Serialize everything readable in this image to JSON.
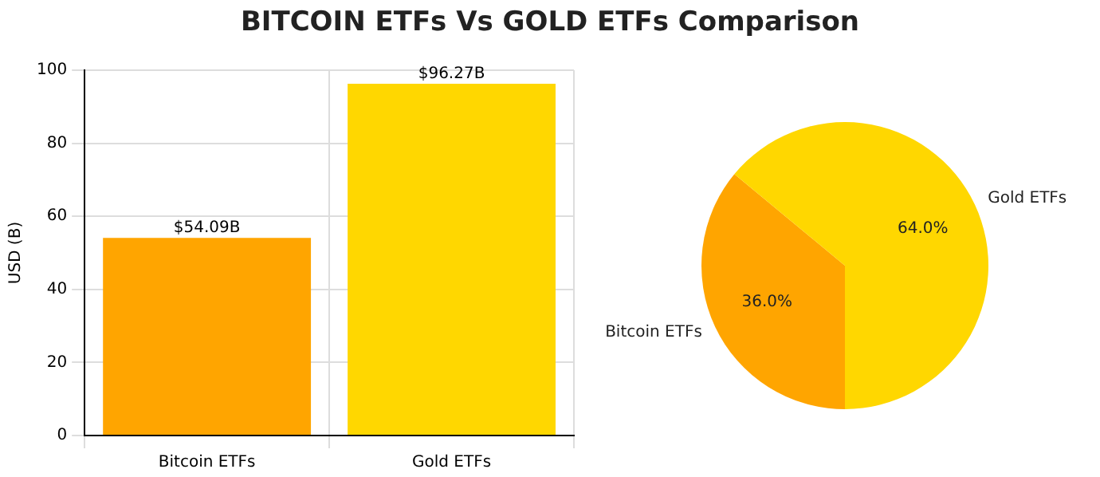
{
  "chart_data": [
    {
      "type": "bar",
      "title": "BITCOIN ETFs Vs GOLD ETFs Comparison",
      "ylabel": "USD (B)",
      "categories": [
        "Bitcoin ETFs",
        "Gold ETFs"
      ],
      "values": [
        54.09,
        96.27
      ],
      "colors": [
        "#ffa500",
        "#ffd700"
      ],
      "value_labels": [
        "$54.09B",
        "$96.27B"
      ],
      "ylim": [
        0,
        100
      ],
      "yticks": [
        0,
        20,
        40,
        60,
        80,
        100
      ],
      "grid": true
    },
    {
      "type": "pie",
      "categories": [
        "Bitcoin ETFs",
        "Gold ETFs"
      ],
      "values": [
        36,
        64
      ],
      "colors": [
        "#ffa500",
        "#ffd700"
      ],
      "value_labels": [
        "36.0%",
        "64.0%"
      ]
    }
  ]
}
